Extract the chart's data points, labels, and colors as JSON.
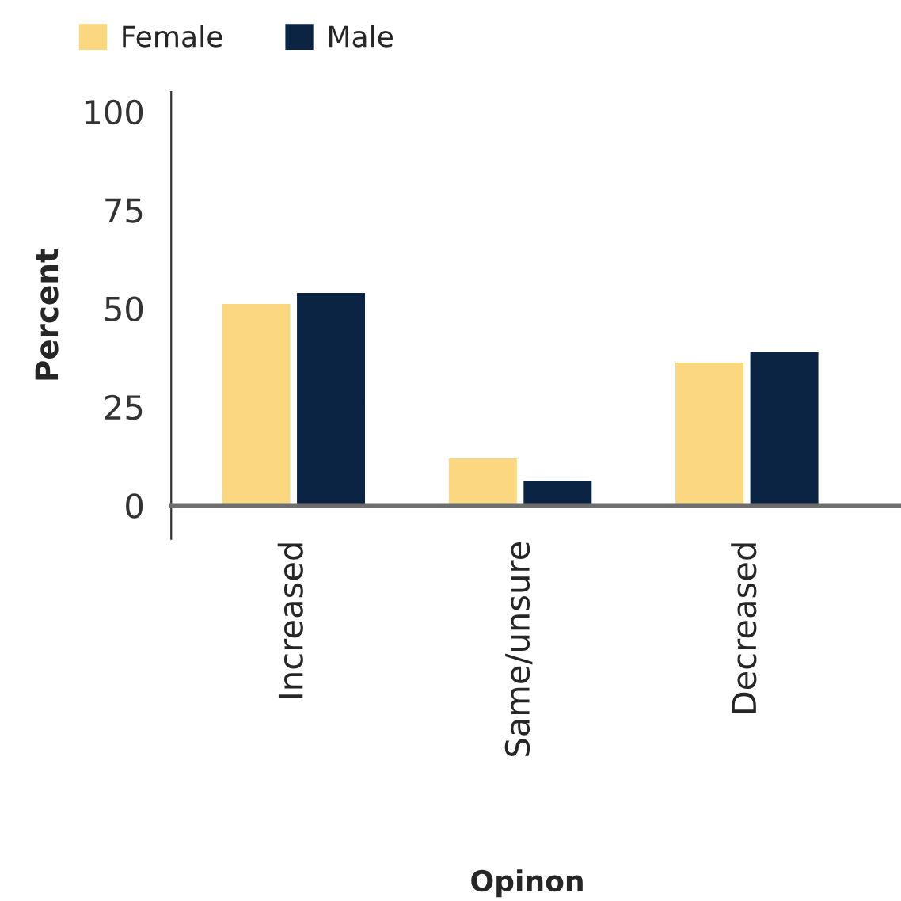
{
  "chart_data": {
    "type": "bar",
    "xlabel": "Opinon",
    "ylabel": "Percent",
    "categories": [
      "Increased",
      "Same/unsure",
      "Decreased"
    ],
    "series": [
      {
        "name": "Female",
        "color": "#fbd87f",
        "values": [
          51.4,
          12.2,
          36.5
        ]
      },
      {
        "name": "Male",
        "color": "#0c2444",
        "values": [
          54.2,
          6.4,
          39.2
        ]
      }
    ],
    "ylim": [
      -8.5,
      105
    ],
    "yticks": [
      0,
      25,
      50,
      75,
      100
    ],
    "grid": false,
    "legend": "top left"
  }
}
